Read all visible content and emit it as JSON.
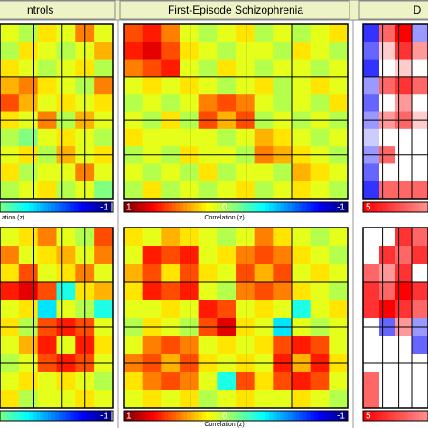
{
  "figure": {
    "type": "heatmap",
    "panels": [
      {
        "title": "ntrols",
        "colormap": "jet",
        "range": [
          -1,
          1
        ],
        "rows": [
          {
            "matrix": [
              [
                0.2,
                0.1,
                0.3,
                0.2,
                0.5,
                0.2
              ],
              [
                0.1,
                0.3,
                0.2,
                0.1,
                0.2,
                0.4
              ],
              [
                0.3,
                0.2,
                0.1,
                0.2,
                0.3,
                0.1
              ],
              [
                0.4,
                0.5,
                0.3,
                0.2,
                0.1,
                0.5
              ],
              [
                0.6,
                0.4,
                0.2,
                0.3,
                0.2,
                0.3
              ],
              [
                0.3,
                0.2,
                0.5,
                0.1,
                0.4,
                0.2
              ],
              [
                0.1,
                0.0,
                0.2,
                0.3,
                0.2,
                0.1
              ],
              [
                0.2,
                0.3,
                0.1,
                0.4,
                0.2,
                0.3
              ],
              [
                0.3,
                0.1,
                0.2,
                0.2,
                0.5,
                0.2
              ],
              [
                0.1,
                0.2,
                0.3,
                0.1,
                0.2,
                0.0
              ]
            ],
            "colorbar": {
              "axis_label": "ation (z)",
              "right": "-1"
            }
          },
          {
            "matrix": [
              [
                0.2,
                0.3,
                0.5,
                0.2,
                0.1,
                0.6
              ],
              [
                0.5,
                0.2,
                0.3,
                0.4,
                0.2,
                0.5
              ],
              [
                0.3,
                0.6,
                0.2,
                0.3,
                0.5,
                0.2
              ],
              [
                0.7,
                0.8,
                0.6,
                -0.2,
                0.3,
                0.4
              ],
              [
                0.2,
                0.3,
                -0.3,
                0.2,
                0.1,
                -0.2
              ],
              [
                0.3,
                0.1,
                0.6,
                0.7,
                0.6,
                0.2
              ],
              [
                0.2,
                0.4,
                0.7,
                0.2,
                0.7,
                0.3
              ],
              [
                0.1,
                0.2,
                0.6,
                0.7,
                0.6,
                0.2
              ],
              [
                0.2,
                0.3,
                0.2,
                0.3,
                0.2,
                0.1
              ],
              [
                0.3,
                0.1,
                0.2,
                0.2,
                0.3,
                0.2
              ]
            ],
            "colorbar": {
              "right": "-1"
            }
          }
        ]
      },
      {
        "title": "First-Episode Schizophrenia",
        "colormap": "jet",
        "range": [
          -1,
          1
        ],
        "rows": [
          {
            "matrix": [
              [
                0.6,
                0.7,
                0.5,
                0.2,
                0.1,
                0.2,
                0.3,
                0.1,
                0.2,
                0.1,
                0.2,
                0.3
              ],
              [
                0.7,
                0.8,
                0.6,
                0.3,
                0.2,
                0.1,
                0.2,
                0.2,
                0.1,
                0.3,
                0.2,
                0.1
              ],
              [
                0.5,
                0.6,
                0.7,
                0.2,
                0.1,
                0.3,
                0.2,
                0.1,
                0.2,
                0.2,
                0.1,
                0.2
              ],
              [
                0.2,
                0.3,
                0.2,
                0.3,
                0.2,
                0.1,
                0.2,
                0.3,
                0.1,
                0.2,
                0.3,
                0.2
              ],
              [
                0.1,
                0.2,
                0.1,
                0.2,
                0.5,
                0.6,
                0.5,
                0.2,
                0.1,
                0.2,
                0.1,
                0.3
              ],
              [
                0.2,
                0.1,
                0.3,
                0.1,
                0.6,
                0.4,
                0.6,
                0.1,
                0.2,
                0.1,
                0.2,
                0.1
              ],
              [
                0.3,
                0.2,
                0.2,
                0.2,
                0.2,
                0.1,
                0.2,
                0.4,
                0.3,
                0.2,
                0.1,
                0.2
              ],
              [
                0.1,
                0.2,
                0.1,
                0.3,
                0.2,
                0.2,
                0.1,
                0.5,
                0.4,
                0.3,
                0.2,
                0.1
              ],
              [
                0.2,
                0.1,
                0.2,
                0.1,
                0.3,
                0.1,
                0.2,
                0.2,
                0.1,
                0.4,
                0.3,
                0.2
              ],
              [
                0.1,
                0.3,
                0.1,
                0.2,
                0.1,
                0.2,
                0.3,
                0.1,
                0.2,
                0.3,
                0.2,
                0.1
              ]
            ],
            "colorbar": {
              "left": "1",
              "center": "0",
              "right": "-1",
              "axis_label": "Correlation (z)"
            }
          },
          {
            "matrix": [
              [
                0.3,
                0.2,
                0.4,
                0.3,
                0.2,
                0.1,
                0.2,
                0.5,
                0.3,
                0.2,
                0.1,
                0.2
              ],
              [
                0.2,
                0.7,
                0.6,
                0.7,
                0.2,
                0.3,
                0.5,
                0.6,
                0.5,
                0.3,
                0.2,
                0.1
              ],
              [
                0.4,
                0.6,
                0.3,
                0.6,
                0.3,
                0.2,
                0.6,
                0.4,
                0.6,
                0.2,
                0.3,
                0.2
              ],
              [
                0.3,
                0.7,
                0.6,
                0.7,
                0.2,
                0.1,
                0.5,
                0.6,
                0.5,
                0.3,
                0.2,
                0.1
              ],
              [
                0.2,
                0.2,
                0.3,
                0.2,
                0.7,
                0.6,
                0.2,
                0.3,
                0.2,
                -0.2,
                0.2,
                0.3
              ],
              [
                0.1,
                0.3,
                0.2,
                0.1,
                0.6,
                0.8,
                0.3,
                0.2,
                -0.3,
                0.2,
                0.1,
                0.2
              ],
              [
                0.2,
                0.5,
                0.6,
                0.5,
                0.2,
                0.3,
                0.2,
                0.3,
                0.6,
                0.7,
                0.6,
                0.2
              ],
              [
                0.5,
                0.6,
                0.4,
                0.6,
                0.3,
                0.2,
                0.3,
                0.2,
                0.7,
                0.4,
                0.7,
                0.3
              ],
              [
                0.3,
                0.5,
                0.6,
                0.5,
                0.2,
                -0.2,
                0.6,
                0.3,
                0.6,
                0.7,
                0.6,
                0.2
              ],
              [
                0.2,
                0.3,
                0.2,
                0.3,
                0.1,
                0.2,
                0.3,
                0.2,
                0.2,
                0.3,
                0.2,
                0.1
              ]
            ],
            "colorbar": {
              "left": "1",
              "center": "0",
              "right": "-1",
              "axis_label": "Correlation (z)"
            }
          }
        ]
      },
      {
        "title": "D",
        "colormap": "diverging",
        "range": [
          -5,
          5
        ],
        "rows": [
          {
            "matrix": [
              [
                -4,
                3,
                5,
                -2
              ],
              [
                -3,
                1,
                4,
                2
              ],
              [
                -4,
                0,
                1,
                0
              ],
              [
                -2,
                3,
                4,
                3
              ],
              [
                -3,
                0,
                2,
                0
              ],
              [
                -2,
                2,
                3,
                1
              ],
              [
                -1,
                0,
                0,
                0
              ],
              [
                -2,
                3,
                0,
                0
              ],
              [
                -3,
                0,
                0,
                0
              ],
              [
                -4,
                3,
                3,
                3
              ]
            ],
            "colorbar": {
              "left": "5"
            }
          },
          {
            "matrix": [
              [
                0,
                0,
                4,
                3
              ],
              [
                0,
                4,
                3,
                4
              ],
              [
                3,
                2,
                4,
                0
              ],
              [
                4,
                3,
                5,
                4
              ],
              [
                4,
                5,
                4,
                3
              ],
              [
                0,
                -3,
                2,
                -2
              ],
              [
                0,
                0,
                0,
                -3
              ],
              [
                0,
                0,
                0,
                0
              ],
              [
                3,
                0,
                0,
                0
              ],
              [
                3,
                0,
                0,
                0
              ]
            ],
            "colorbar": {
              "left": "5"
            }
          }
        ]
      }
    ]
  }
}
